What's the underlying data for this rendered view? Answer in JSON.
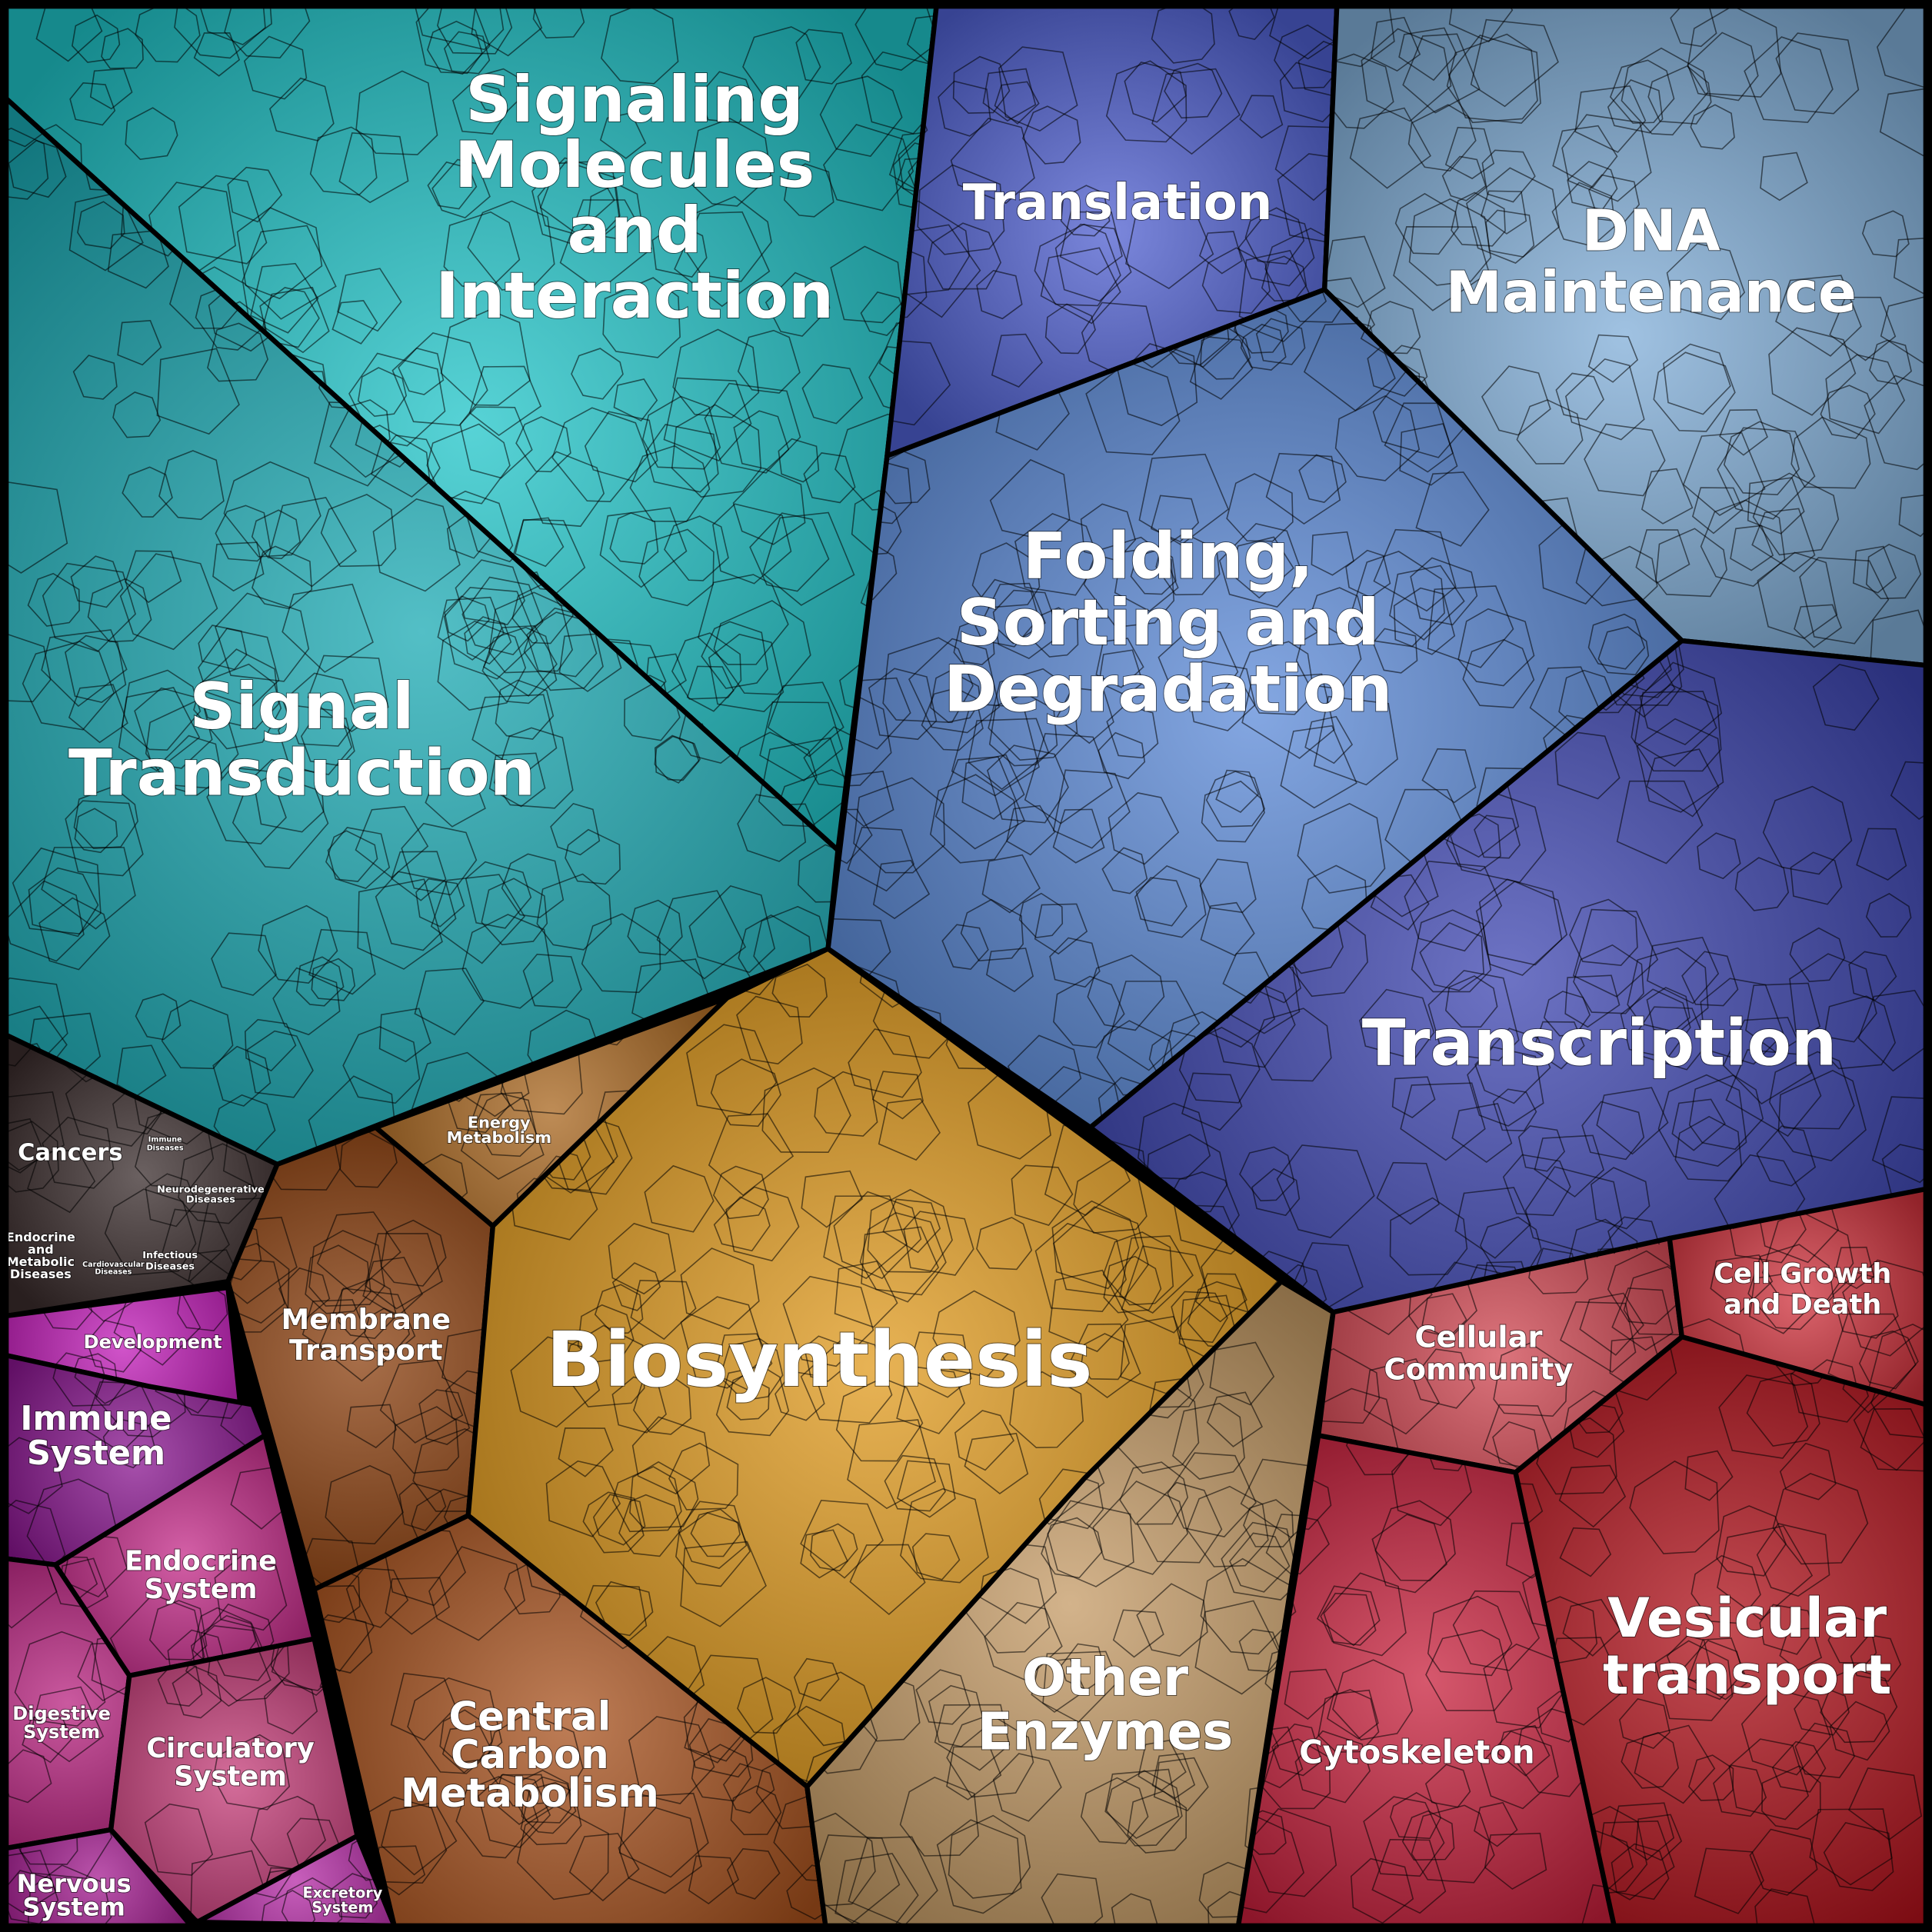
{
  "regions": [
    {
      "id": "signaling-molecules",
      "label": [
        "Signaling",
        "Molecules",
        "and",
        "Interaction"
      ],
      "color": "#1fc4c8"
    },
    {
      "id": "signal-transduction",
      "label": [
        "Signal",
        "Transduction"
      ],
      "color": "#1aa9b3"
    },
    {
      "id": "diseases",
      "label": [
        "Cancers"
      ],
      "color": "#3a2c2c"
    },
    {
      "id": "development",
      "label": [
        "Development"
      ],
      "color": "#c21bb8"
    },
    {
      "id": "immune-system",
      "label": [
        "Immune",
        "System"
      ],
      "color": "#8a1590"
    },
    {
      "id": "endocrine-system",
      "label": [
        "Endocrine",
        "System"
      ],
      "color": "#c42a88"
    },
    {
      "id": "digestive-system",
      "label": [
        "Digestive",
        "System"
      ],
      "color": "#b8227f"
    },
    {
      "id": "circulatory-system",
      "label": [
        "Circulatory",
        "System"
      ],
      "color": "#c53c78"
    },
    {
      "id": "nervous-system",
      "label": [
        "Nervous",
        "System"
      ],
      "color": "#a41b90"
    },
    {
      "id": "excretory-system",
      "label": [
        "Excretory",
        "System"
      ],
      "color": "#b52aa6"
    },
    {
      "id": "membrane-transport",
      "label": [
        "Membrane",
        "Transport"
      ],
      "color": "#8a3d0c"
    },
    {
      "id": "energy-metabolism",
      "label": [
        "Energy",
        "Metabolism"
      ],
      "color": "#a8661e"
    },
    {
      "id": "biosynthesis",
      "label": [
        "Biosynthesis"
      ],
      "color": "#e09a1c"
    },
    {
      "id": "central-carbon-metabolism",
      "label": [
        "Central",
        "Carbon",
        "Metabolism"
      ],
      "color": "#a8511d"
    },
    {
      "id": "other-enzymes",
      "label": [
        "Other",
        "Enzymes"
      ],
      "color": "#c49a64"
    },
    {
      "id": "translation",
      "label": [
        "Translation"
      ],
      "color": "#4f5fd0"
    },
    {
      "id": "dna-maintenance",
      "label": [
        "DNA",
        "Maintenance"
      ],
      "color": "#80aed8"
    },
    {
      "id": "folding-sorting-degradation",
      "label": [
        "Folding,",
        "Sorting and",
        "Degradation"
      ],
      "color": "#5b8ad8"
    },
    {
      "id": "transcription",
      "label": [
        "Transcription"
      ],
      "color": "#3c44b0"
    },
    {
      "id": "cellular-community",
      "label": [
        "Cellular",
        "Community"
      ],
      "color": "#d04550"
    },
    {
      "id": "cell-growth-and-death",
      "label": [
        "Cell Growth",
        "and Death"
      ],
      "color": "#d0323c"
    },
    {
      "id": "cytoskeleton",
      "label": [
        "Cytoskeleton"
      ],
      "color": "#c8203c"
    },
    {
      "id": "vesicular-transport",
      "label": [
        "Vesicular",
        "transport"
      ],
      "color": "#b0101a"
    }
  ],
  "disease_sublabels": {
    "immune": [
      "Immune",
      "Diseases"
    ],
    "neuro": [
      "Neurodegenerative",
      "Diseases"
    ],
    "endocrine": [
      "Endocrine",
      "and",
      "Metabolic",
      "Diseases"
    ],
    "cardio": [
      "Cardiovascular",
      "Diseases"
    ],
    "infectious": [
      "Infectious",
      "Diseases"
    ]
  }
}
